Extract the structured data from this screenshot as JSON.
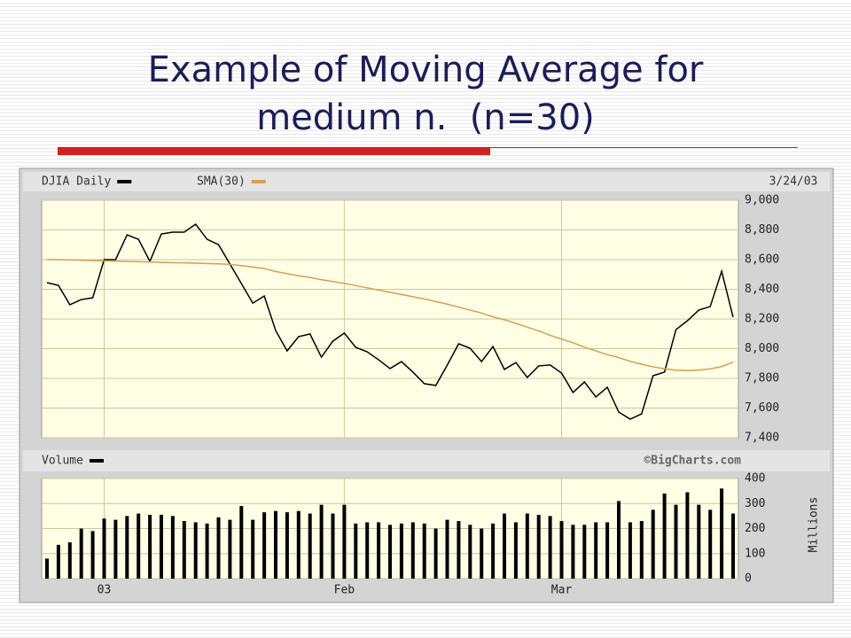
{
  "slide": {
    "title": [
      "Example of Moving Average for",
      "medium n.  (n=30)"
    ]
  },
  "chart_data": [
    {
      "type": "line",
      "date": "3/24/03",
      "series": [
        {
          "name": "DJIA Daily",
          "color": "#000000",
          "values": [
            8445,
            8427,
            8296,
            8331,
            8343,
            8600,
            8600,
            8767,
            8737,
            8588,
            8773,
            8785,
            8785,
            8839,
            8737,
            8701,
            8570,
            8439,
            8307,
            8355,
            8122,
            7985,
            8081,
            8099,
            7943,
            8051,
            8105,
            8009,
            7979,
            7925,
            7866,
            7913,
            7842,
            7764,
            7752,
            7889,
            8033,
            8003,
            7913,
            8015,
            7860,
            7907,
            7806,
            7884,
            7890,
            7836,
            7705,
            7776,
            7675,
            7740,
            7573,
            7525,
            7561,
            7818,
            7842,
            8128,
            8188,
            8260,
            8284,
            8522,
            8212
          ]
        },
        {
          "name": "SMA(30)",
          "color": "#d4a050",
          "values": [
            8600,
            8600,
            8598,
            8596,
            8594,
            8592,
            8590,
            8588,
            8586,
            8584,
            8582,
            8580,
            8578,
            8576,
            8574,
            8572,
            8568,
            8560,
            8550,
            8540,
            8520,
            8505,
            8492,
            8480,
            8465,
            8452,
            8440,
            8425,
            8410,
            8395,
            8380,
            8365,
            8350,
            8335,
            8318,
            8300,
            8280,
            8260,
            8240,
            8215,
            8195,
            8170,
            8145,
            8120,
            8090,
            8065,
            8040,
            8010,
            7985,
            7960,
            7940,
            7915,
            7895,
            7878,
            7865,
            7855,
            7852,
            7856,
            7864,
            7880,
            7910
          ]
        }
      ],
      "ylim": [
        7400,
        9000
      ],
      "yticks": [
        {
          "value": 7400,
          "label": "7,400"
        },
        {
          "value": 7600,
          "label": "7,600"
        },
        {
          "value": 7800,
          "label": "7,800"
        },
        {
          "value": 8000,
          "label": "8,000"
        },
        {
          "value": 8200,
          "label": "8,200"
        },
        {
          "value": 8400,
          "label": "8,400"
        },
        {
          "value": 8600,
          "label": "8,600"
        },
        {
          "value": 8800,
          "label": "8,800"
        },
        {
          "value": 9000,
          "label": "9,000"
        }
      ],
      "grid": true
    },
    {
      "type": "bar",
      "source": "©BigCharts.com",
      "y_label": "Millions",
      "categories": [
        null,
        null,
        null,
        null,
        null,
        "03",
        null,
        null,
        null,
        null,
        null,
        null,
        null,
        null,
        null,
        null,
        null,
        null,
        null,
        null,
        null,
        null,
        null,
        null,
        null,
        null,
        "Feb",
        null,
        null,
        null,
        null,
        null,
        null,
        null,
        null,
        null,
        null,
        null,
        null,
        null,
        null,
        null,
        null,
        null,
        null,
        "Mar",
        null,
        null,
        null,
        null,
        null,
        null,
        null,
        null,
        null,
        null,
        null,
        null,
        null,
        null,
        null
      ],
      "series": [
        {
          "name": "Volume",
          "color": "#000000",
          "values": [
            80,
            135,
            145,
            200,
            190,
            240,
            235,
            250,
            260,
            255,
            255,
            250,
            230,
            225,
            220,
            245,
            235,
            290,
            235,
            265,
            270,
            265,
            270,
            260,
            295,
            260,
            295,
            220,
            225,
            225,
            215,
            220,
            225,
            220,
            200,
            235,
            230,
            215,
            200,
            220,
            260,
            225,
            260,
            255,
            250,
            230,
            215,
            215,
            225,
            225,
            310,
            225,
            230,
            275,
            340,
            295,
            345,
            295,
            275,
            360,
            260
          ]
        }
      ],
      "ylim": [
        0,
        400
      ],
      "yticks": [
        0,
        100,
        200,
        300,
        400
      ],
      "grid": true
    }
  ]
}
